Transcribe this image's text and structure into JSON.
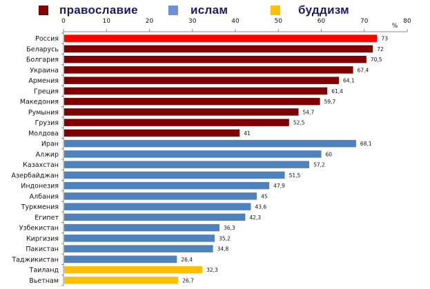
{
  "chart_data": {
    "type": "bar",
    "orientation": "horizontal",
    "title": "",
    "xlabel": "%",
    "ylabel": "",
    "xlim": [
      0,
      80
    ],
    "xticks": [
      0,
      10,
      20,
      30,
      40,
      50,
      60,
      70,
      80
    ],
    "axis_position": "top",
    "grid": false,
    "legend_position": "top",
    "legend": [
      {
        "name": "православие",
        "color": "#7f0000"
      },
      {
        "name": "ислам",
        "color": "#6d8fdc"
      },
      {
        "name": "буддизм",
        "color": "#ffc000"
      }
    ],
    "categories": [
      "Россия",
      "Беларусь",
      "Болгария",
      "Украина",
      "Армения",
      "Греция",
      "Македония",
      "Румыния",
      "Грузия",
      "Молдова",
      "Иран",
      "Алжир",
      "Казахстан",
      "Азербайджан",
      "Индонезия",
      "Албания",
      "Туркмения",
      "Египет",
      "Узбекистан",
      "Киргизия",
      "Пакистан",
      "Таджикистан",
      "Таиланд",
      "Вьетнам"
    ],
    "values": [
      73,
      72,
      70.5,
      67.4,
      64.1,
      61.4,
      59.7,
      54.7,
      52.5,
      41,
      68.1,
      60,
      57.2,
      51.5,
      47.9,
      45,
      43.6,
      42.3,
      36.3,
      35.2,
      34.8,
      26.4,
      32.3,
      26.7
    ],
    "value_labels": [
      "73",
      "72",
      "70,5",
      "67,4",
      "64,1",
      "61,4",
      "59,7",
      "54,7",
      "52,5",
      "41",
      "68,1",
      "60",
      "57,2",
      "51,5",
      "47,9",
      "45",
      "43,6",
      "42,3",
      "36,3",
      "35,2",
      "34,8",
      "26,4",
      "32,3",
      "26,7"
    ],
    "groups": [
      "православие",
      "православие",
      "православие",
      "православие",
      "православие",
      "православие",
      "православие",
      "православие",
      "православие",
      "православие",
      "ислам",
      "ислам",
      "ислам",
      "ислам",
      "ислам",
      "ислам",
      "ислам",
      "ислам",
      "ислам",
      "ислам",
      "ислам",
      "ислам",
      "буддизм",
      "буддизм"
    ],
    "bar_colors": [
      "#ff0000",
      "#7f0000",
      "#7f0000",
      "#7f0000",
      "#7f0000",
      "#7f0000",
      "#7f0000",
      "#7f0000",
      "#7f0000",
      "#7f0000",
      "#4f81bd",
      "#4f81bd",
      "#4f81bd",
      "#4f81bd",
      "#4f81bd",
      "#4f81bd",
      "#4f81bd",
      "#4f81bd",
      "#4f81bd",
      "#4f81bd",
      "#4f81bd",
      "#4f81bd",
      "#ffc000",
      "#ffc000"
    ],
    "highlight": {
      "category": "Россия",
      "color": "#ff0000"
    }
  }
}
